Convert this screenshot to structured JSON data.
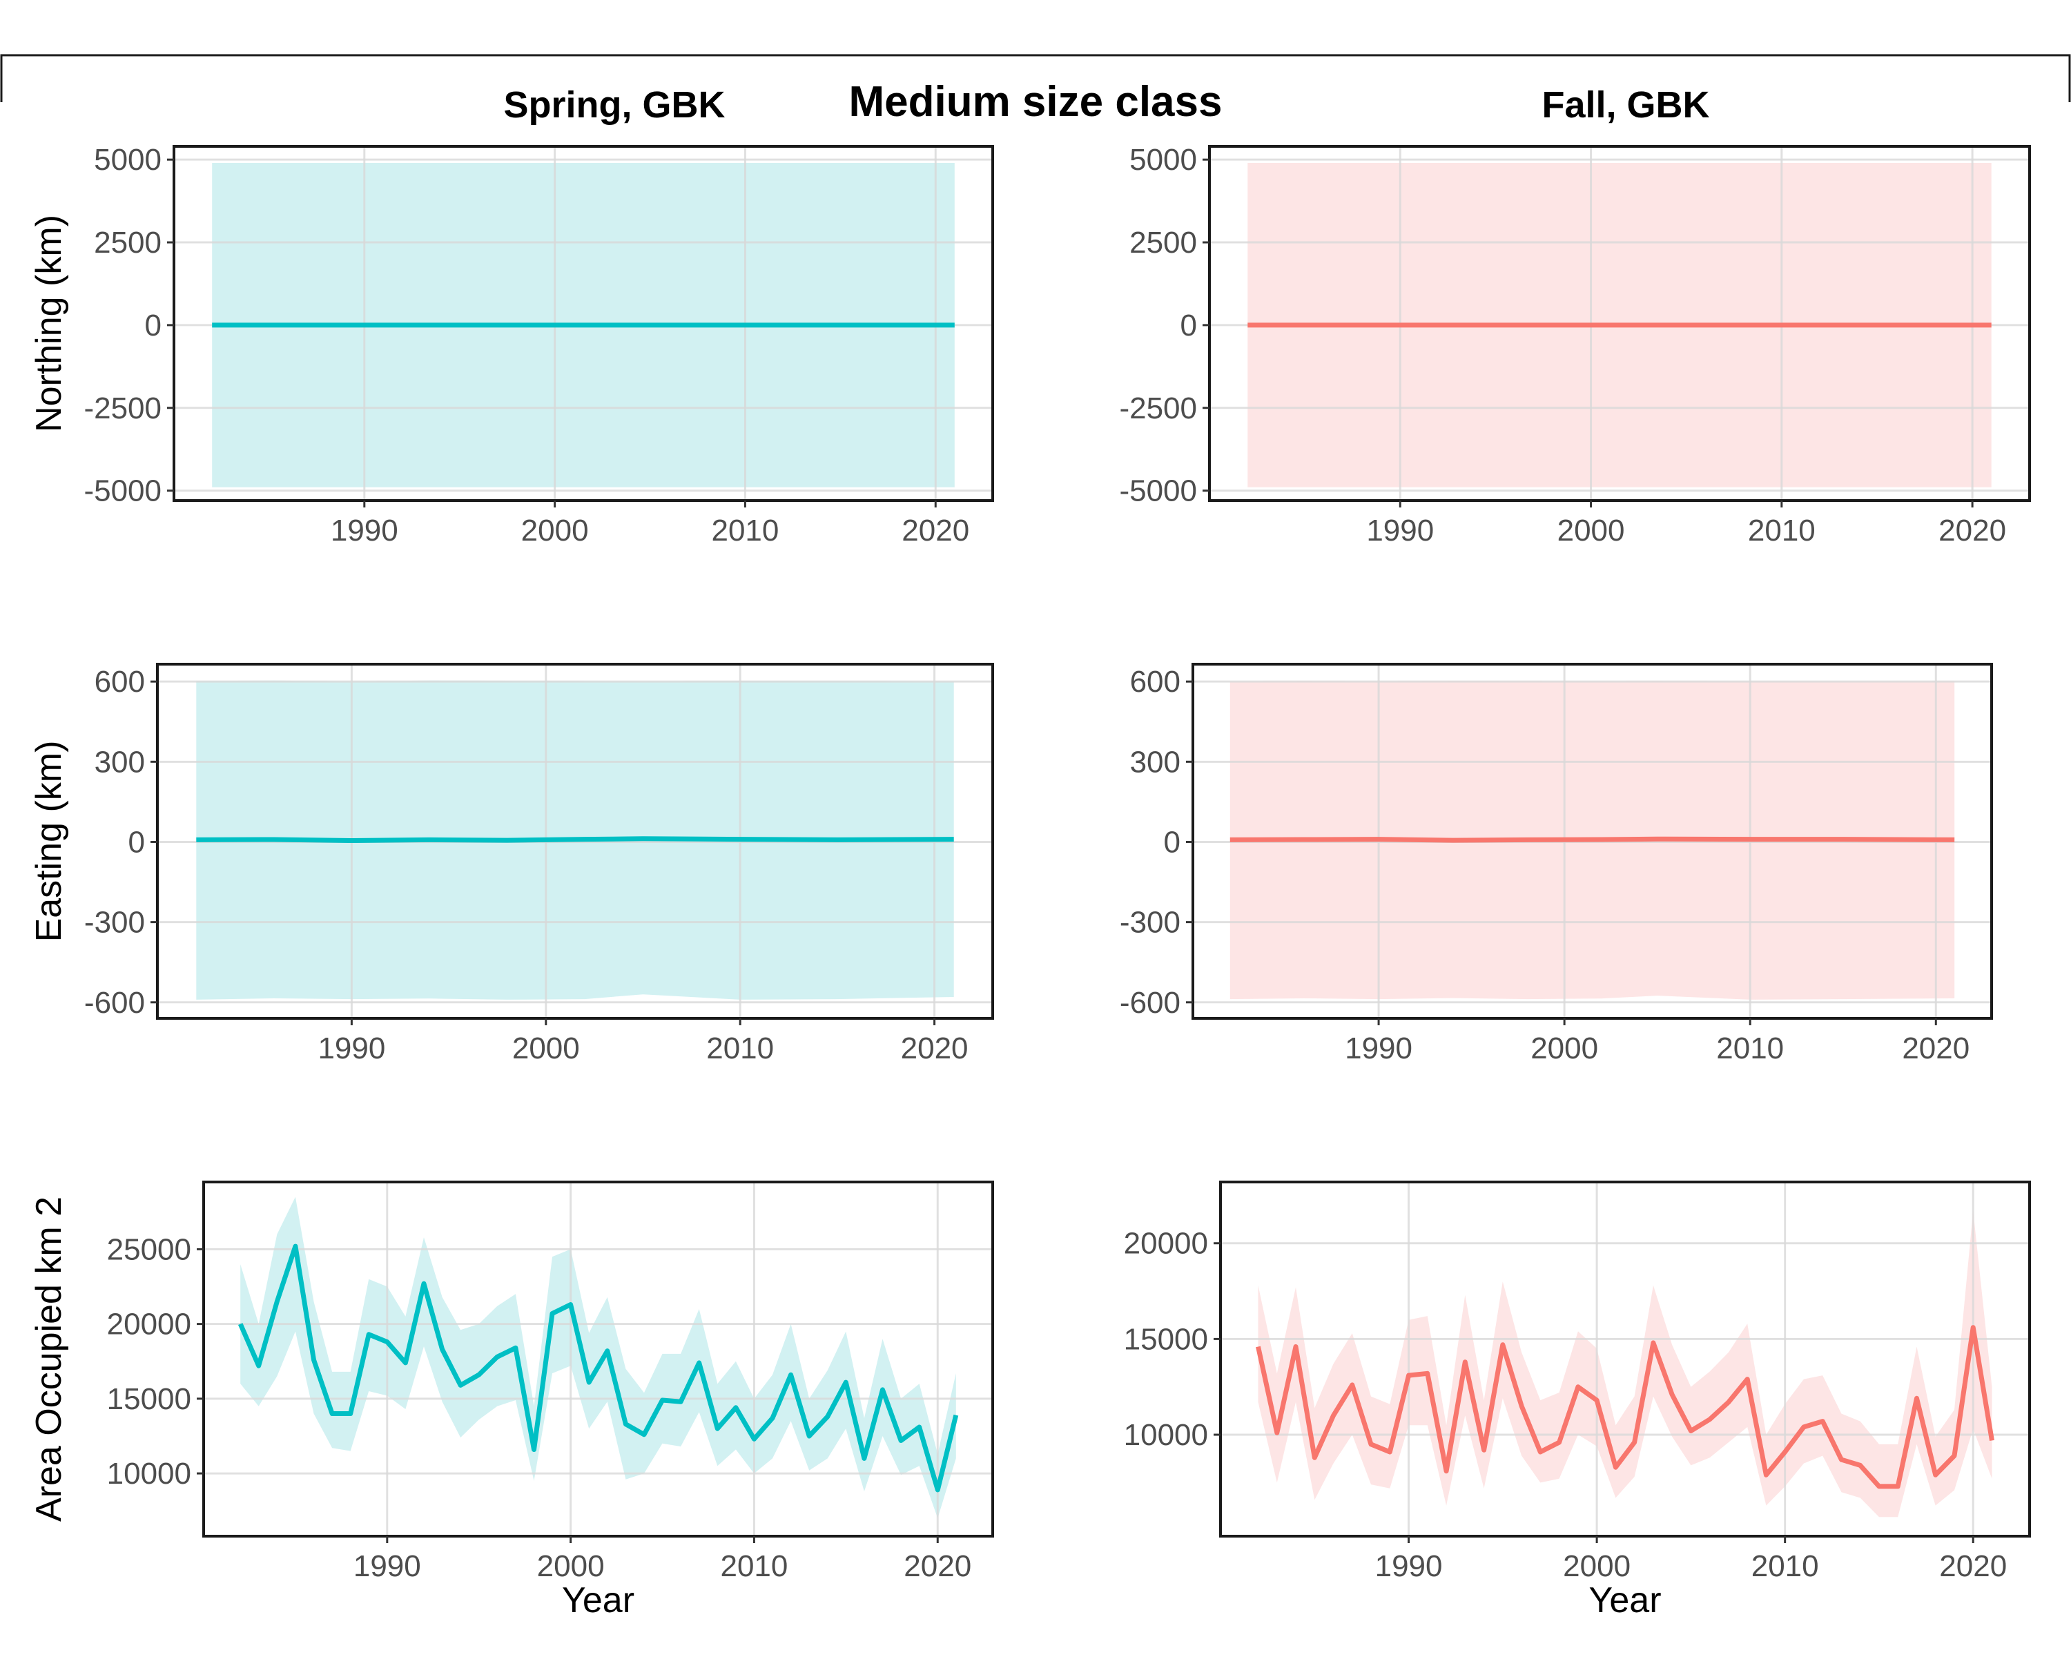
{
  "figure": {
    "title": "Medium size class",
    "col_titles": [
      "Spring, GBK",
      "Fall, GBK"
    ],
    "colors": {
      "spring_line": "#00bfc4",
      "spring_band": "#cdf0f1",
      "fall_line": "#f8766d",
      "fall_band": "#fde2e2"
    }
  },
  "chart_data": [
    {
      "type": "area",
      "panel": "spring-northing",
      "title": "",
      "xlabel": "",
      "ylabel": "Northing (km)",
      "xlim": [
        1980,
        2023
      ],
      "ylim": [
        -5300,
        5400
      ],
      "xticks": [
        1990,
        2000,
        2010,
        2020
      ],
      "yticks": [
        -5000,
        -2500,
        0,
        2500,
        5000
      ],
      "x": [
        1982,
        1990,
        2000,
        2010,
        2021
      ],
      "values": [
        0,
        0,
        0,
        0,
        0
      ],
      "lower": [
        -4900,
        -4900,
        -4900,
        -4900,
        -4900
      ],
      "upper": [
        4900,
        4900,
        4900,
        4900,
        4900
      ]
    },
    {
      "type": "area",
      "panel": "fall-northing",
      "title": "",
      "xlabel": "",
      "ylabel": "",
      "xlim": [
        1980,
        2023
      ],
      "ylim": [
        -5300,
        5400
      ],
      "xticks": [
        1990,
        2000,
        2010,
        2020
      ],
      "yticks": [
        -5000,
        -2500,
        0,
        2500,
        5000
      ],
      "x": [
        1982,
        1990,
        2000,
        2010,
        2021
      ],
      "values": [
        0,
        0,
        0,
        0,
        0
      ],
      "lower": [
        -4900,
        -4900,
        -4900,
        -4900,
        -4900
      ],
      "upper": [
        4900,
        4900,
        4900,
        4900,
        4900
      ]
    },
    {
      "type": "area",
      "panel": "spring-easting",
      "title": "",
      "xlabel": "",
      "ylabel": "Easting (km)",
      "xlim": [
        1980,
        2023
      ],
      "ylim": [
        -660,
        665
      ],
      "xticks": [
        1990,
        2000,
        2010,
        2020
      ],
      "yticks": [
        -600,
        -300,
        0,
        300,
        600
      ],
      "x": [
        1982,
        1986,
        1990,
        1994,
        1998,
        2002,
        2005,
        2010,
        2015,
        2021
      ],
      "values": [
        8,
        9,
        5,
        8,
        6,
        10,
        12,
        10,
        8,
        10
      ],
      "lower": [
        -590,
        -585,
        -588,
        -586,
        -590,
        -588,
        -570,
        -590,
        -588,
        -580
      ],
      "upper": [
        602,
        604,
        600,
        604,
        603,
        601,
        600,
        603,
        602,
        600
      ]
    },
    {
      "type": "area",
      "panel": "fall-easting",
      "title": "",
      "xlabel": "",
      "ylabel": "",
      "xlim": [
        1980,
        2023
      ],
      "ylim": [
        -660,
        665
      ],
      "xticks": [
        1990,
        2000,
        2010,
        2020
      ],
      "yticks": [
        -600,
        -300,
        0,
        300,
        600
      ],
      "x": [
        1982,
        1986,
        1990,
        1994,
        1998,
        2002,
        2005,
        2010,
        2015,
        2021
      ],
      "values": [
        8,
        9,
        10,
        6,
        8,
        9,
        11,
        10,
        10,
        8
      ],
      "lower": [
        -588,
        -585,
        -588,
        -584,
        -588,
        -586,
        -575,
        -590,
        -588,
        -585
      ],
      "upper": [
        600,
        602,
        600,
        603,
        601,
        600,
        602,
        600,
        600,
        601
      ]
    },
    {
      "type": "line",
      "panel": "spring-area",
      "title": "",
      "xlabel": "Year",
      "ylabel": "Area Occupied km 2",
      "xlim": [
        1980,
        2023
      ],
      "ylim": [
        5800,
        29500
      ],
      "xticks": [
        1990,
        2000,
        2010,
        2020
      ],
      "yticks": [
        10000,
        15000,
        20000,
        25000
      ],
      "x": [
        1982,
        1983,
        1984,
        1985,
        1986,
        1987,
        1988,
        1989,
        1990,
        1991,
        1992,
        1993,
        1994,
        1995,
        1996,
        1997,
        1998,
        1999,
        2000,
        2001,
        2002,
        2003,
        2004,
        2005,
        2006,
        2007,
        2008,
        2009,
        2010,
        2011,
        2012,
        2013,
        2014,
        2015,
        2016,
        2017,
        2018,
        2019,
        2020,
        2021
      ],
      "values": [
        20000,
        17200,
        21500,
        25200,
        17600,
        14000,
        14000,
        19300,
        18800,
        17400,
        22700,
        18300,
        15900,
        16600,
        17800,
        18400,
        11600,
        20700,
        21300,
        16100,
        18200,
        13300,
        12600,
        14900,
        14800,
        17400,
        13000,
        14400,
        12300,
        13700,
        16600,
        12500,
        13800,
        16100,
        11000,
        15600,
        12200,
        13100,
        8900,
        13900
      ],
      "lower": [
        16000,
        14500,
        16500,
        19500,
        14000,
        11700,
        11500,
        15500,
        15200,
        14300,
        18500,
        14800,
        12400,
        13600,
        14500,
        14900,
        9500,
        16700,
        17200,
        13000,
        14800,
        9600,
        10000,
        12000,
        11800,
        14100,
        10500,
        11600,
        10000,
        11000,
        13500,
        10200,
        11000,
        13000,
        8800,
        12500,
        9900,
        10500,
        7000,
        11000
      ],
      "upper": [
        24000,
        20000,
        26000,
        28500,
        21500,
        16800,
        16800,
        23000,
        22500,
        20500,
        25800,
        21800,
        19600,
        20000,
        21200,
        22000,
        14500,
        24500,
        25000,
        19400,
        21800,
        17000,
        15400,
        18000,
        18000,
        21000,
        16000,
        17500,
        15000,
        16600,
        20000,
        15000,
        16900,
        19500,
        13700,
        19000,
        15000,
        16000,
        11300,
        16700
      ]
    },
    {
      "type": "line",
      "panel": "fall-area",
      "title": "",
      "xlabel": "Year",
      "ylabel": "",
      "xlim": [
        1980,
        2023
      ],
      "ylim": [
        4700,
        23200
      ],
      "xticks": [
        1990,
        2000,
        2010,
        2020
      ],
      "yticks": [
        10000,
        15000,
        20000
      ],
      "x": [
        1982,
        1983,
        1984,
        1985,
        1986,
        1987,
        1988,
        1989,
        1990,
        1991,
        1992,
        1993,
        1994,
        1995,
        1996,
        1997,
        1998,
        1999,
        2000,
        2001,
        2002,
        2003,
        2004,
        2005,
        2006,
        2007,
        2008,
        2009,
        2010,
        2011,
        2012,
        2013,
        2014,
        2015,
        2016,
        2017,
        2018,
        2019,
        2020,
        2021
      ],
      "values": [
        14600,
        10100,
        14600,
        8800,
        11000,
        12600,
        9500,
        9100,
        13100,
        13200,
        8100,
        13800,
        9200,
        14700,
        11500,
        9100,
        9600,
        12500,
        11800,
        8300,
        9600,
        14800,
        12100,
        10200,
        10800,
        11700,
        12900,
        7900,
        9100,
        10400,
        10700,
        8700,
        8400,
        7300,
        7300,
        11900,
        7900,
        8900,
        15600,
        9700
      ],
      "lower": [
        11700,
        7500,
        11700,
        6600,
        8500,
        10000,
        7400,
        7200,
        10500,
        10500,
        6300,
        11000,
        7200,
        11900,
        8900,
        7500,
        7700,
        10000,
        9400,
        6700,
        7800,
        12000,
        9900,
        8400,
        8800,
        9600,
        10400,
        6300,
        7300,
        8500,
        8900,
        7000,
        6700,
        5700,
        5700,
        9500,
        6300,
        7100,
        10300,
        7700
      ],
      "upper": [
        17800,
        13200,
        17700,
        11400,
        13700,
        15300,
        12000,
        11600,
        16000,
        16200,
        10500,
        17300,
        11800,
        18000,
        14300,
        11800,
        12200,
        15400,
        14500,
        10500,
        12000,
        17800,
        14700,
        12500,
        13300,
        14300,
        15800,
        10000,
        11600,
        12900,
        13100,
        11100,
        10700,
        9500,
        9500,
        14600,
        9900,
        11300,
        21700,
        12500
      ]
    }
  ]
}
